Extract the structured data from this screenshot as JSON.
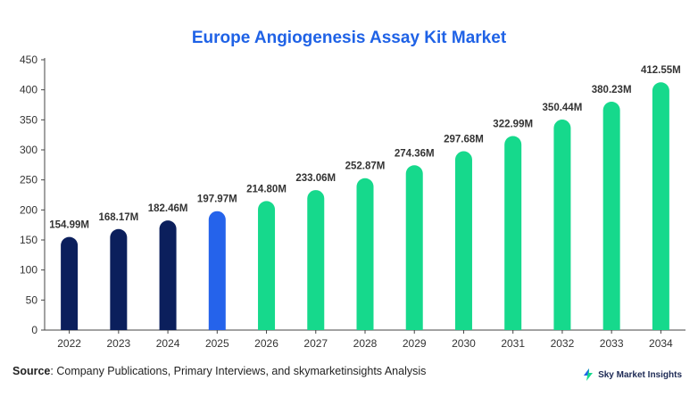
{
  "chart_data": {
    "type": "bar",
    "title": "Europe Angiogenesis Assay Kit Market",
    "categories": [
      "2022",
      "2023",
      "2024",
      "2025",
      "2026",
      "2027",
      "2028",
      "2029",
      "2030",
      "2031",
      "2032",
      "2033",
      "2034"
    ],
    "values": [
      154.99,
      168.17,
      182.46,
      197.97,
      214.8,
      233.06,
      252.87,
      274.36,
      297.68,
      322.99,
      350.44,
      380.23,
      412.55
    ],
    "data_labels": [
      "154.99M",
      "168.17M",
      "182.46M",
      "197.97M",
      "214.80M",
      "233.06M",
      "252.87M",
      "274.36M",
      "297.68M",
      "322.99M",
      "350.44M",
      "380.23M",
      "412.55M"
    ],
    "ylim": [
      0,
      450
    ],
    "yticks": [
      0,
      50,
      100,
      150,
      200,
      250,
      300,
      350,
      400,
      450
    ],
    "grid": false,
    "colors": {
      "historical": "#0b1f5c",
      "base_year": "#2563eb",
      "forecast": "#16d98c"
    },
    "bar_color_groups": [
      "historical",
      "historical",
      "historical",
      "base_year",
      "forecast",
      "forecast",
      "forecast",
      "forecast",
      "forecast",
      "forecast",
      "forecast",
      "forecast",
      "forecast"
    ]
  },
  "footer": {
    "source_label": "Source",
    "source_text": ": Company Publications, Primary Interviews, and skymarketinsights Analysis",
    "brand_name": "Sky Market Insights",
    "brand_icon": "lightning-bolt-icon"
  }
}
